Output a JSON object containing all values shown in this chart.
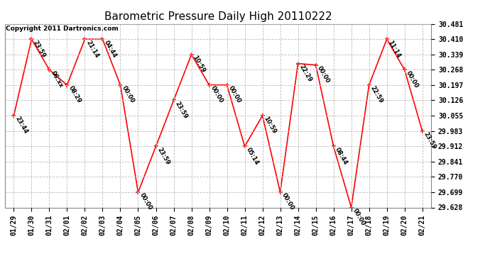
{
  "title": "Barometric Pressure Daily High 20110222",
  "copyright": "Copyright 2011 Dartronics.com",
  "x_labels": [
    "01/29",
    "01/30",
    "01/31",
    "02/01",
    "02/02",
    "02/03",
    "02/04",
    "02/05",
    "02/06",
    "02/07",
    "02/08",
    "02/09",
    "02/10",
    "02/11",
    "02/12",
    "02/13",
    "02/14",
    "02/15",
    "02/16",
    "02/17",
    "02/18",
    "02/19",
    "02/20",
    "02/21"
  ],
  "y_values": [
    30.055,
    30.41,
    30.268,
    30.197,
    30.41,
    30.41,
    30.197,
    29.699,
    29.912,
    30.126,
    30.339,
    30.197,
    30.197,
    29.912,
    30.055,
    29.699,
    30.297,
    30.29,
    29.912,
    29.628,
    30.197,
    30.41,
    30.268,
    29.983
  ],
  "time_labels": [
    "23:44",
    "23:59",
    "06:xx",
    "08:29",
    "21:14",
    "04:44",
    "00:00",
    "00:00",
    "23:59",
    "23:59",
    "10:59",
    "00:00",
    "00:00",
    "05:14",
    "10:59",
    "00:00",
    "22:29",
    "00:00",
    "08:44",
    "00:00",
    "22:59",
    "11:14",
    "00:00",
    "23:59"
  ],
  "ylim_min": 29.628,
  "ylim_max": 30.481,
  "y_ticks": [
    29.628,
    29.699,
    29.77,
    29.841,
    29.912,
    29.983,
    30.055,
    30.126,
    30.197,
    30.268,
    30.339,
    30.41,
    30.481
  ],
  "line_color": "#ff0000",
  "marker_color": "#ff0000",
  "bg_color": "#ffffff",
  "grid_color": "#bbbbbb",
  "title_fontsize": 11,
  "copyright_fontsize": 6.5,
  "label_fontsize": 6,
  "tick_fontsize": 7
}
